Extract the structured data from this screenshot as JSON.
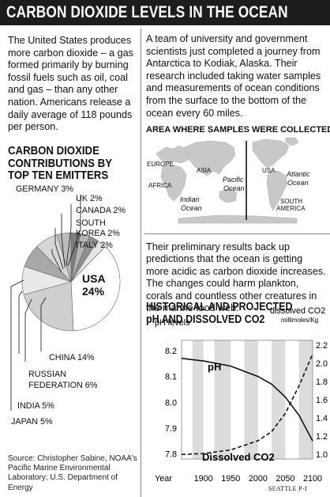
{
  "header": {
    "title": "CARBON DIOXIDE LEVELS IN THE OCEAN"
  },
  "intro_text": "The United States produces more carbon dioxide – a gas formed primarily by burning fossil fuels such as oil, coal and gas – than any other nation. Americans release a daily average of 118 pounds per person.",
  "emitters": {
    "title": "CARBON DIOXIDE\nCONTRIBUTIONS BY\nTOP TEN EMITTERS",
    "labels": {
      "germany": "GERMANY 3%",
      "uk": "UK 2%",
      "canada": "CANADA 2%",
      "south_korea_line1": "SOUTH",
      "south_korea_line2": "KOREA 2%",
      "italy": "ITALY 2%",
      "usa_line1": "USA",
      "usa_line2": "24%",
      "china": "CHINA 14%",
      "russia_line1": "RUSSIAN",
      "russia_line2": "FEDERATION 6%",
      "india": "INDIA 5%",
      "japan": "JAPAN 5%"
    }
  },
  "source": "Source: Christopher Sabine, NOAA's Pacific Marine Environmental Laboratory; U.S. Department of Energy",
  "right_intro": "A team of university and government scientists just completed a journey from Antarctica to Kodiak, Alaska. Their research included taking water samples and measurements of ocean conditions from the surface to the bottom of the ocean every 60 miles.",
  "map": {
    "title": "AREA WHERE SAMPLES WERE COLLECTED",
    "labels": {
      "europe": "EUROPE",
      "asia": "ASIA",
      "africa": "AFRICA",
      "indian1": "Indian",
      "indian2": "Ocean",
      "pacific1": "Pacific",
      "pacific2": "Ocean",
      "usa": "USA",
      "atlantic1": "Atlantic",
      "atlantic2": "Ocean",
      "sa1": "SOUTH",
      "sa2": "AMERICA"
    }
  },
  "right_paragraph": "Their preliminary results back up predictions that the ocean is getting more acidic as carbon dioxide increases. The changes could harm plankton, corals and countless other creatures in the marine food web.",
  "credit": "SEATTLE P-I",
  "chart_data": [
    {
      "type": "pie",
      "title": "CARBON DIOXIDE CONTRIBUTIONS BY TOP TEN EMITTERS",
      "slices": [
        {
          "label": "USA",
          "value": 24,
          "color": "#ffffff"
        },
        {
          "label": "CHINA",
          "value": 14,
          "color": "#cfcfcf"
        },
        {
          "label": "RUSSIAN FEDERATION",
          "value": 6,
          "color": "#e9e9e9"
        },
        {
          "label": "INDIA",
          "value": 5,
          "color": "#a8a8a8"
        },
        {
          "label": "JAPAN",
          "value": 5,
          "color": "#d6d6d6"
        },
        {
          "label": "GERMANY",
          "value": 3,
          "color": "#bcbcbc"
        },
        {
          "label": "UK",
          "value": 2,
          "color": "#7d7d7d"
        },
        {
          "label": "CANADA",
          "value": 2,
          "color": "#b4b4b4"
        },
        {
          "label": "SOUTH KOREA",
          "value": 2,
          "color": "#8f8f8f"
        },
        {
          "label": "ITALY",
          "value": 2,
          "color": "#e4e4e4"
        }
      ]
    },
    {
      "type": "line",
      "title": "HISTORICAL AND PROJECTED\npH AND DISSOLVED CO2",
      "xlabel": "Year",
      "x_ticks": [
        1900,
        1950,
        2000,
        2050,
        2100
      ],
      "xlim": [
        1860,
        2100
      ],
      "y_left_label": "pH levels",
      "y_left_ticks": [
        7.8,
        7.9,
        8.0,
        8.1,
        8.2
      ],
      "y_left_lim": [
        7.78,
        8.24
      ],
      "y_right_label": "dissolved CO2",
      "y_right_unit": "millimoles/Kg",
      "y_right_ticks": [
        1.0,
        1.2,
        1.4,
        1.6,
        1.8,
        2.0,
        2.2
      ],
      "y_right_lim": [
        0.95,
        2.25
      ],
      "grid": "vertical bands",
      "series": [
        {
          "name": "pH",
          "axis": "left",
          "style": "solid",
          "x": [
            1860,
            1900,
            1950,
            2000,
            2025,
            2050,
            2075,
            2100
          ],
          "values": [
            8.17,
            8.16,
            8.14,
            8.1,
            8.07,
            8.02,
            7.95,
            7.85
          ]
        },
        {
          "name": "Dissolved CO2",
          "axis": "right",
          "style": "dashed",
          "x": [
            1860,
            1900,
            1950,
            2000,
            2025,
            2050,
            2075,
            2100
          ],
          "values": [
            1.0,
            1.01,
            1.05,
            1.15,
            1.25,
            1.45,
            1.75,
            2.1
          ]
        }
      ]
    }
  ]
}
